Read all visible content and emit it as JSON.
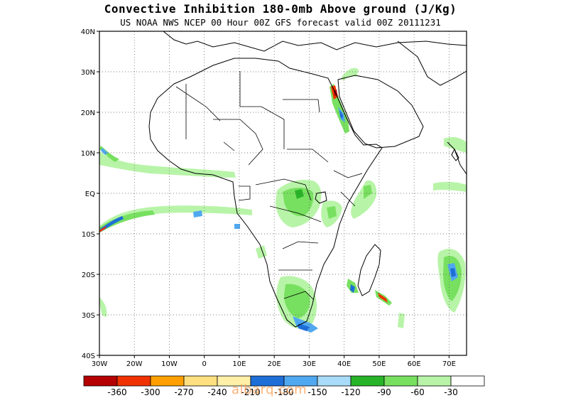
{
  "title": "Convective Inhibition 180-0mb Above ground (J/Kg)",
  "subtitle": "US NOAA NWS NCEP 00 Hour 00Z GFS forecast valid 00Z 20111231",
  "watermark": "albarq.com",
  "map": {
    "lon_range": [
      -30,
      75
    ],
    "lat_range": [
      -40,
      40
    ],
    "x_ticks": [
      "30W",
      "20W",
      "10W",
      "0",
      "10E",
      "20E",
      "30E",
      "40E",
      "50E",
      "60E",
      "70E"
    ],
    "y_ticks": [
      "40N",
      "30N",
      "20N",
      "10N",
      "EQ",
      "10S",
      "20S",
      "30S",
      "40S"
    ],
    "grid": "dotted",
    "coastline_color": "#000000"
  },
  "legend": {
    "colors": [
      "#b40000",
      "#f03200",
      "#ffa000",
      "#ffe080",
      "#fff0a8",
      "#1e6ed8",
      "#50a8f0",
      "#a8dcf8",
      "#28b428",
      "#78e060",
      "#b8f4a8",
      "#ffffff"
    ],
    "labels": [
      "-360",
      "-300",
      "-270",
      "-240",
      "-210",
      "-180",
      "-150",
      "-120",
      "-90",
      "-60",
      "-30"
    ]
  }
}
